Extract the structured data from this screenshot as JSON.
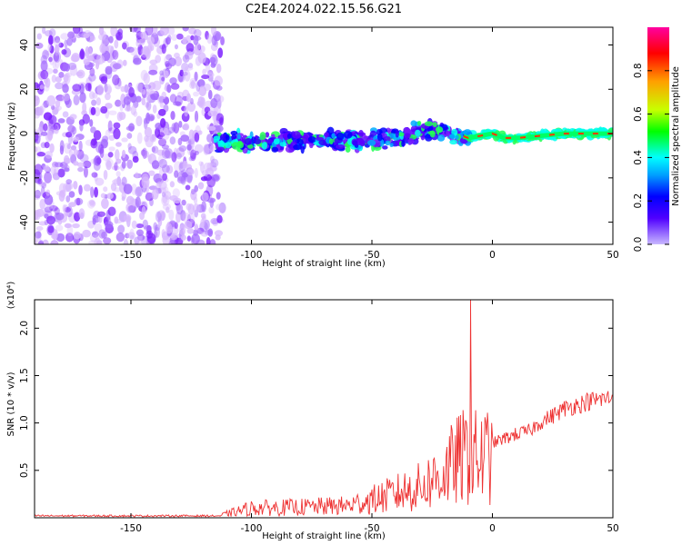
{
  "title": "C2E4.2024.022.15.56.G21",
  "colors": {
    "snr_line": "#ee3333",
    "scatter_violet": "#7a1cff",
    "scatter_light": "#d8b8ff",
    "colorbar_stops": [
      "#b8a8ff",
      "#0000ff",
      "#00a0ff",
      "#00ffff",
      "#00ff00",
      "#c8ff00",
      "#ffa000",
      "#ff0000",
      "#ff00a0"
    ]
  },
  "chart_data": [
    {
      "type": "scatter",
      "name": "spectrogram",
      "xlabel": "Height of straight line (km)",
      "ylabel": "Frequency (Hz)",
      "xlim": [
        -190,
        50
      ],
      "ylim": [
        -50,
        48
      ],
      "xticks": [
        "-150",
        "-100",
        "-50",
        "0",
        "50"
      ],
      "yticks": [
        "40",
        "20",
        "0",
        "-20",
        "-40"
      ],
      "colorbar": {
        "label": "Normalized spectral amplitude",
        "range": [
          0,
          1
        ],
        "ticks": [
          "0.0",
          "0.2",
          "0.4",
          "0.6",
          "0.8"
        ]
      },
      "ridge": {
        "x": [
          -115,
          -100,
          -80,
          -60,
          -40,
          -25,
          -15,
          -10,
          0,
          5,
          10,
          20,
          30,
          40,
          50
        ],
        "y": [
          -4,
          -4,
          -3,
          -3,
          -2,
          2,
          0,
          -2,
          0,
          -2,
          -2,
          -1,
          0,
          0,
          0
        ]
      }
    },
    {
      "type": "line",
      "name": "snr",
      "xlabel": "Height of straight line (km)",
      "ylabel": "SNR (10 * v/v)",
      "yscale_label": "(x10⁴)",
      "xlim": [
        -190,
        50
      ],
      "ylim": [
        0,
        2.3
      ],
      "xticks": [
        "-150",
        "-100",
        "-50",
        "0",
        "50"
      ],
      "yticks": [
        "2.0",
        "1.5",
        "1.0",
        "0.5"
      ],
      "envelope": {
        "x": [
          -190,
          -115,
          -110,
          -100,
          -80,
          -60,
          -50,
          -40,
          -30,
          -20,
          -15,
          -10,
          -5,
          0,
          10,
          15,
          20,
          25,
          30,
          40,
          50
        ],
        "y": [
          0.02,
          0.02,
          0.05,
          0.12,
          0.13,
          0.15,
          0.22,
          0.3,
          0.38,
          0.55,
          0.7,
          0.78,
          0.72,
          0.82,
          0.92,
          0.95,
          1.05,
          1.12,
          1.2,
          1.28,
          1.32
        ]
      },
      "spike": {
        "x": -9,
        "y": 2.3
      }
    }
  ]
}
